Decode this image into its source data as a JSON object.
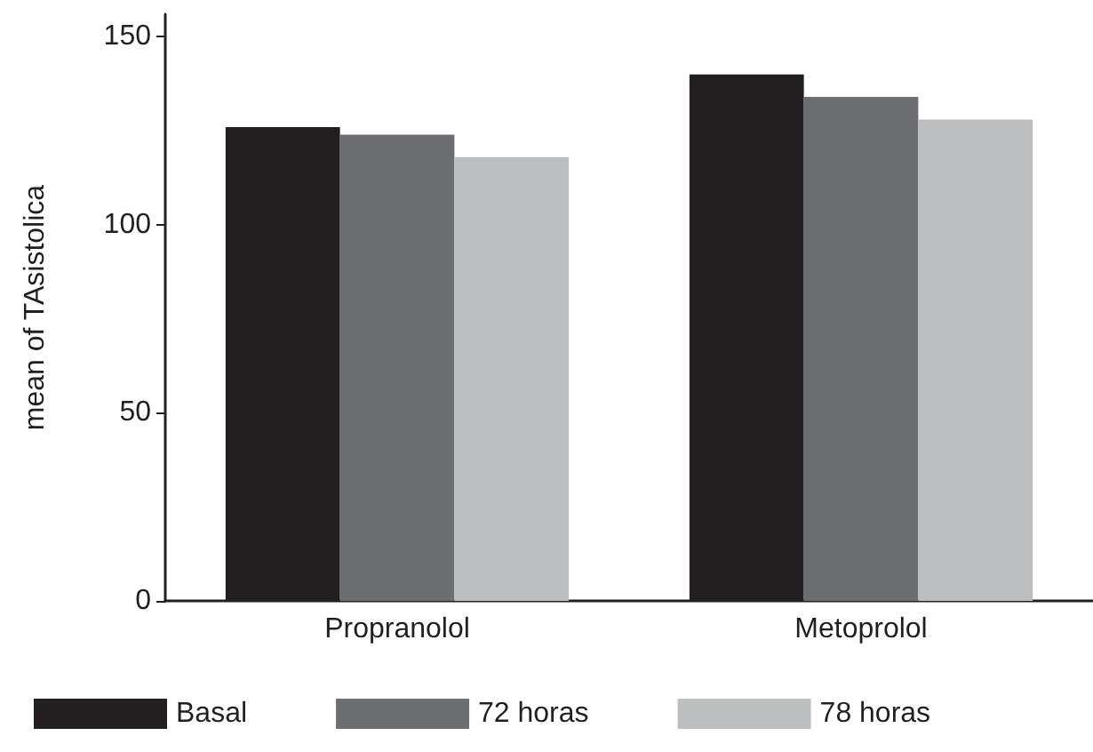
{
  "chart_data": {
    "type": "bar",
    "ylabel": "mean of TAsistolica",
    "categories": [
      "Propranolol",
      "Metoprolol"
    ],
    "series": [
      {
        "name": "Basal",
        "color": "#231f20",
        "values": [
          126,
          140
        ]
      },
      {
        "name": "72 horas",
        "color": "#6d6e71",
        "values": [
          124,
          134
        ]
      },
      {
        "name": "78 horas",
        "color": "#bcbec0",
        "values": [
          118,
          128
        ]
      }
    ],
    "ylim": [
      0,
      156
    ],
    "yticks": [
      0,
      50,
      100,
      150
    ],
    "grid": false,
    "legend": "bottom"
  }
}
